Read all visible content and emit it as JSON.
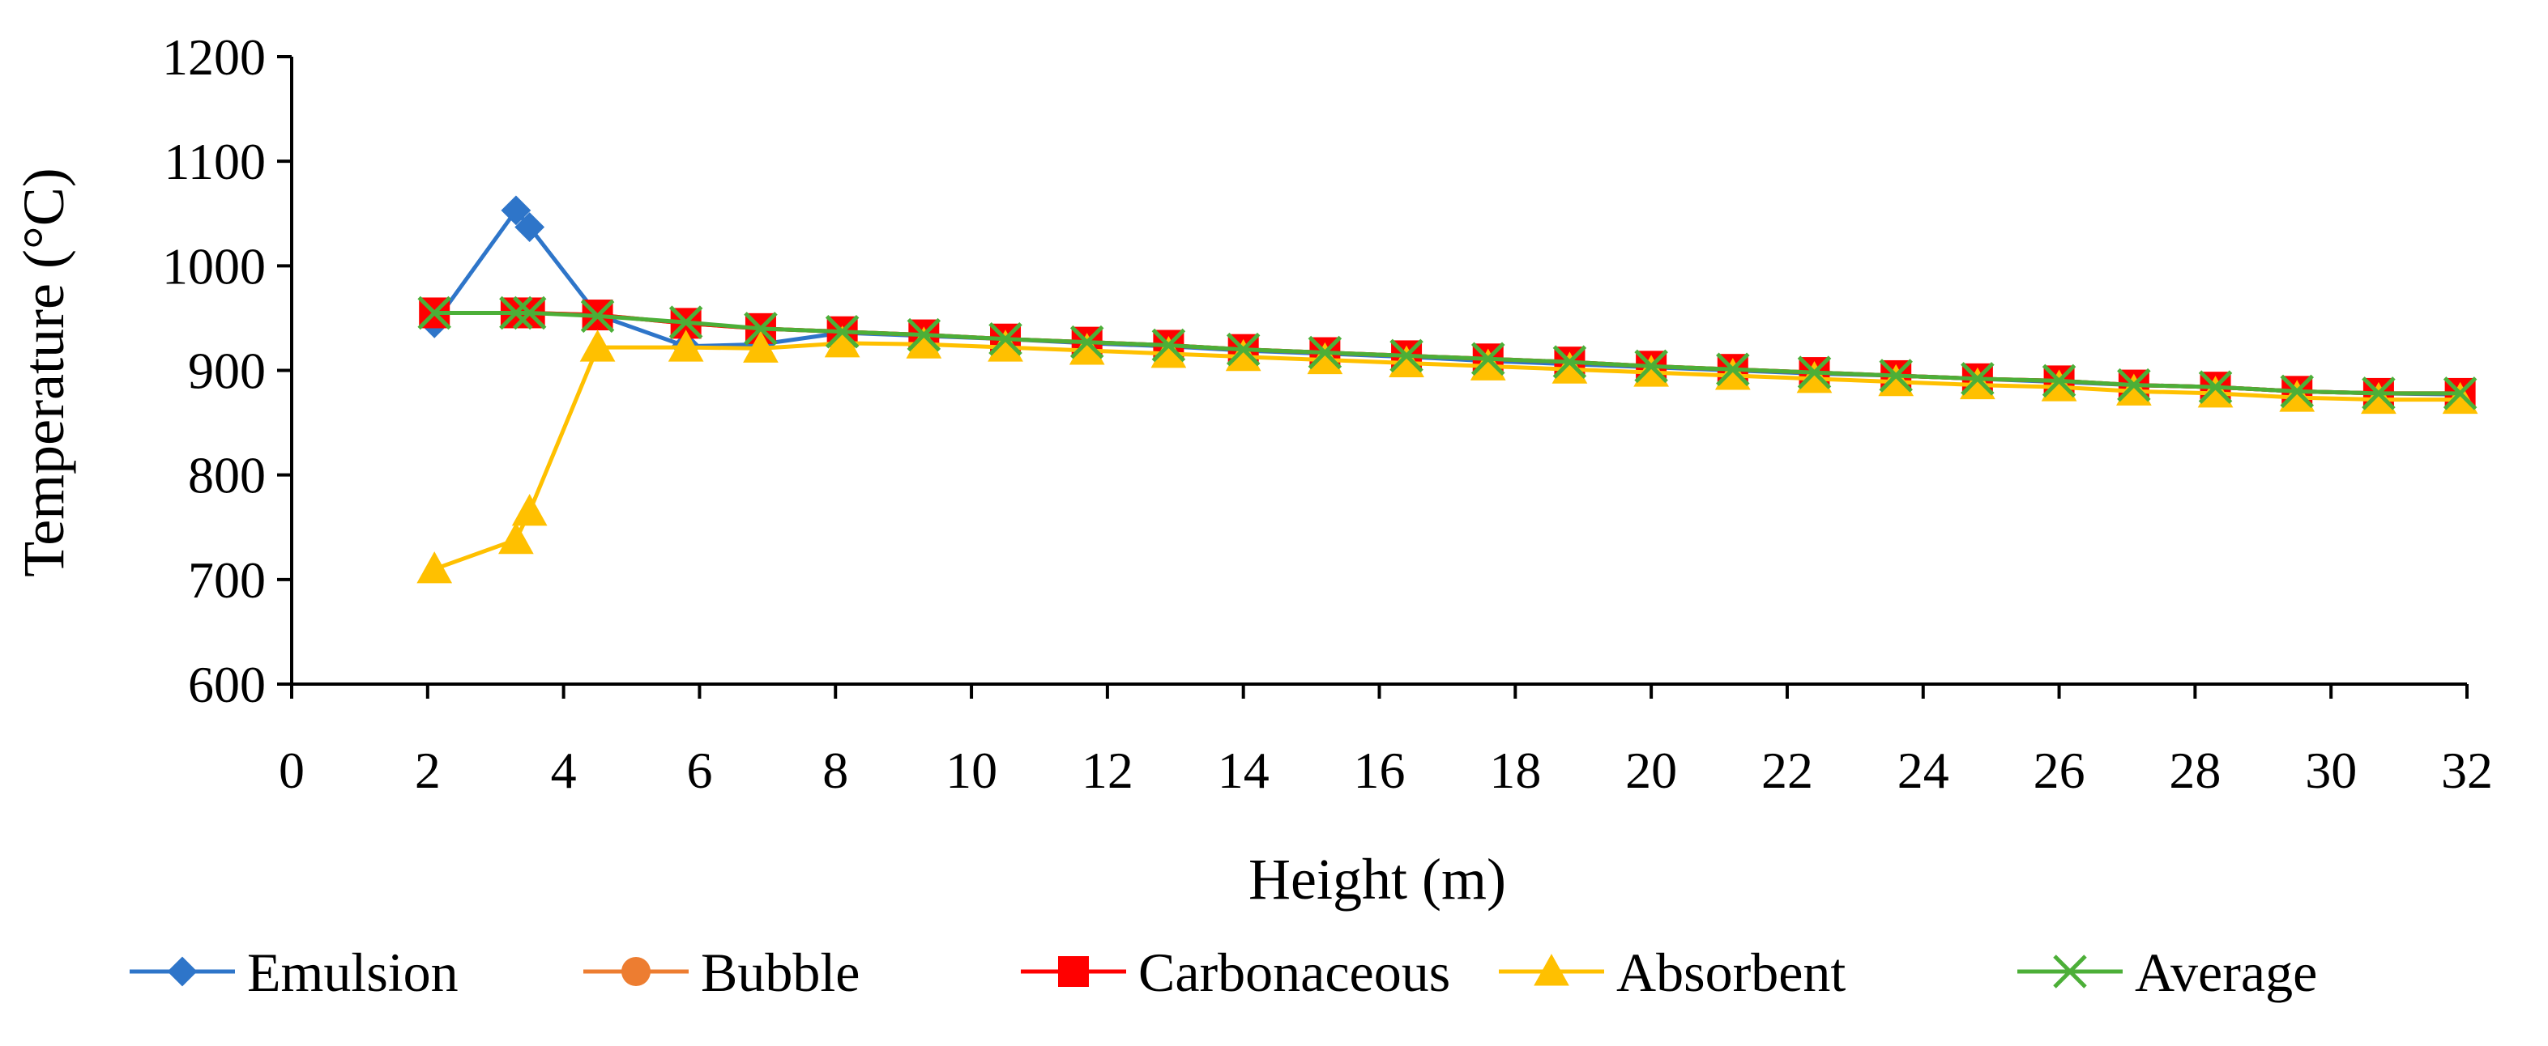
{
  "chart_data": {
    "type": "line",
    "title": "",
    "xlabel": "Height (m)",
    "ylabel": "Temperature (°C)",
    "xlim": [
      0,
      32
    ],
    "ylim": [
      600,
      1200
    ],
    "xticks": [
      0,
      2,
      4,
      6,
      8,
      10,
      12,
      14,
      16,
      18,
      20,
      22,
      24,
      26,
      28,
      30,
      32
    ],
    "yticks": [
      600,
      700,
      800,
      900,
      1000,
      1100,
      1200
    ],
    "legend_position": "bottom",
    "grid": false,
    "series": [
      {
        "name": "Emulsion",
        "color": "#2E75C9",
        "marker": "diamond",
        "x": [
          2.1,
          3.3,
          3.5,
          4.5,
          5.8,
          6.9,
          8.1,
          9.3,
          10.5,
          11.7,
          12.9,
          14.0,
          15.2,
          16.4,
          17.6,
          18.8,
          20.0,
          21.2,
          22.4,
          23.6,
          24.8,
          26.0,
          27.1,
          28.3,
          29.5,
          30.7,
          31.9
        ],
        "y": [
          945,
          1053,
          1037,
          953,
          923,
          925,
          936,
          933,
          930,
          926,
          923,
          919,
          916,
          913,
          909,
          906,
          903,
          900,
          897,
          895,
          892,
          889,
          886,
          884,
          880,
          878,
          877
        ]
      },
      {
        "name": "Bubble",
        "color": "#ED7D31",
        "marker": "circle",
        "x": [
          2.1,
          3.3,
          3.5,
          4.5,
          5.8,
          6.9,
          8.1,
          9.3,
          10.5,
          11.7,
          12.9,
          14.0,
          15.2,
          16.4,
          17.6,
          18.8,
          20.0,
          21.2,
          22.4,
          23.6,
          24.8,
          26.0,
          27.1,
          28.3,
          29.5,
          30.7,
          31.9
        ],
        "y": [
          955,
          955,
          955,
          953,
          945,
          940,
          937,
          934,
          930,
          927,
          924,
          920,
          917,
          914,
          911,
          908,
          904,
          901,
          898,
          895,
          892,
          890,
          886,
          884,
          880,
          878,
          878
        ]
      },
      {
        "name": "Carbonaceous",
        "color": "#FF0000",
        "marker": "square",
        "x": [
          2.1,
          3.3,
          3.5,
          4.5,
          5.8,
          6.9,
          8.1,
          9.3,
          10.5,
          11.7,
          12.9,
          14.0,
          15.2,
          16.4,
          17.6,
          18.8,
          20.0,
          21.2,
          22.4,
          23.6,
          24.8,
          26.0,
          27.1,
          28.3,
          29.5,
          30.7,
          31.9
        ],
        "y": [
          955,
          955,
          955,
          953,
          945,
          940,
          937,
          934,
          930,
          927,
          924,
          920,
          917,
          914,
          911,
          908,
          904,
          901,
          898,
          895,
          892,
          890,
          886,
          884,
          880,
          878,
          878
        ]
      },
      {
        "name": "Absorbent",
        "color": "#FFC000",
        "marker": "triangle",
        "x": [
          2.1,
          3.3,
          3.5,
          4.5,
          5.8,
          6.9,
          8.1,
          9.3,
          10.5,
          11.7,
          12.9,
          14.0,
          15.2,
          16.4,
          17.6,
          18.8,
          20.0,
          21.2,
          22.4,
          23.6,
          24.8,
          26.0,
          27.1,
          28.3,
          29.5,
          30.7,
          31.9
        ],
        "y": [
          710,
          738,
          765,
          922,
          922,
          921,
          926,
          925,
          922,
          919,
          916,
          913,
          910,
          907,
          904,
          901,
          898,
          895,
          892,
          889,
          886,
          884,
          880,
          878,
          874,
          872,
          872
        ]
      },
      {
        "name": "Average",
        "color": "#4CAF38",
        "marker": "x",
        "x": [
          2.1,
          3.3,
          3.5,
          4.5,
          5.8,
          6.9,
          8.1,
          9.3,
          10.5,
          11.7,
          12.9,
          14.0,
          15.2,
          16.4,
          17.6,
          18.8,
          20.0,
          21.2,
          22.4,
          23.6,
          24.8,
          26.0,
          27.1,
          28.3,
          29.5,
          30.7,
          31.9
        ],
        "y": [
          955,
          955,
          955,
          952,
          946,
          940,
          937,
          934,
          930,
          927,
          924,
          920,
          917,
          914,
          911,
          908,
          904,
          901,
          898,
          895,
          892,
          890,
          886,
          884,
          880,
          878,
          878
        ]
      }
    ]
  }
}
